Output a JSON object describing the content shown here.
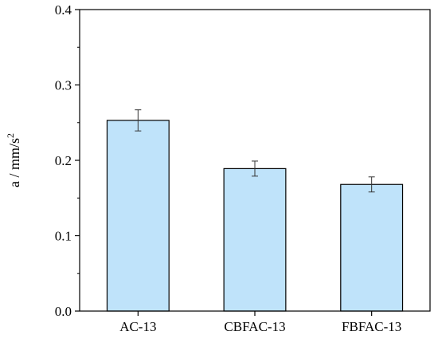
{
  "chart_data": {
    "type": "bar",
    "categories": [
      "AC-13",
      "CBFAC-13",
      "FBFAC-13"
    ],
    "values": [
      0.253,
      0.189,
      0.168
    ],
    "error": [
      0.014,
      0.01,
      0.01
    ],
    "ylabel_main": "a / mm/s",
    "ylabel_sup": "2",
    "ylim": [
      0,
      0.4
    ],
    "yticks": [
      "0.0",
      "0.1",
      "0.2",
      "0.3",
      "0.4"
    ],
    "grid": false,
    "bar_color": "#bfe3fa",
    "bar_edge_color": "#000000"
  }
}
